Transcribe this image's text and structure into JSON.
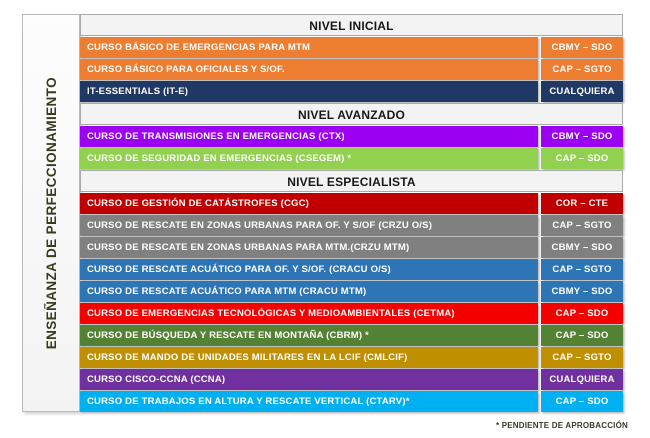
{
  "sidebar": {
    "title": "ENSEÑANZA DE PERFECCIONAMIENTO"
  },
  "footnote": "* PENDIENTE DE APROBACCIÓN",
  "colors": {
    "orange": "#ED7D31",
    "navy": "#1F3864",
    "violet": "#9B00F2",
    "light_green": "#92D050",
    "dark_red": "#C00000",
    "gray": "#808080",
    "steel_blue": "#2E75B6",
    "bright_red": "#F40000",
    "olive_green": "#548235",
    "gold": "#BF8F00",
    "dark_purple": "#7030A0",
    "cyan_blue": "#00B0F0",
    "header_bg": "#F3F3F3"
  },
  "table": {
    "rows": [
      {
        "type": "header",
        "label": "NIVEL INICIAL"
      },
      {
        "type": "course",
        "course": "CURSO BÁSICO DE EMERGENCIAS PARA MTM",
        "rank": "CBMY – SDO",
        "color": "#ED7D31"
      },
      {
        "type": "course",
        "course": "CURSO BÁSICO PARA OFICIALES Y S/OF.",
        "rank": "CAP – SGTO",
        "color": "#ED7D31"
      },
      {
        "type": "course",
        "course": "IT-ESSENTIALS (IT-E)",
        "rank": "CUALQUIERA",
        "color": "#1F3864"
      },
      {
        "type": "header",
        "label": "NIVEL AVANZADO"
      },
      {
        "type": "course",
        "course": "CURSO DE TRANSMISIONES EN EMERGENCIAS (CTX)",
        "rank": "CBMY – SDO",
        "color": "#9B00F2"
      },
      {
        "type": "course",
        "course": "CURSO DE SEGURIDAD EN EMERGENCIAS (CSEGEM) *",
        "rank": "CAP – SDO",
        "color": "#92D050"
      },
      {
        "type": "header",
        "label": "NIVEL ESPECIALISTA"
      },
      {
        "type": "course",
        "course": "CURSO DE GESTIÓN DE CATÁSTROFES (CGC)",
        "rank": "COR – CTE",
        "color": "#C00000"
      },
      {
        "type": "course",
        "course": "CURSO DE RESCATE EN ZONAS URBANAS PARA OF. Y S/OF (CRZU O/S)",
        "rank": "CAP – SGTO",
        "color": "#808080"
      },
      {
        "type": "course",
        "course": "CURSO DE RESCATE EN ZONAS URBANAS PARA MTM.(CRZU MTM)",
        "rank": "CBMY – SDO",
        "color": "#808080"
      },
      {
        "type": "course",
        "course": "CURSO DE RESCATE ACUÁTICO PARA OF. Y S/OF. (CRACU O/S)",
        "rank": "CAP – SGTO",
        "color": "#2E75B6"
      },
      {
        "type": "course",
        "course": "CURSO DE RESCATE ACUÁTICO PARA MTM (CRACU MTM)",
        "rank": "CBMY – SDO",
        "color": "#2E75B6"
      },
      {
        "type": "course",
        "course": "CURSO DE EMERGENCIAS TECNOLÓGICAS Y MEDIOAMBIENTALES (CETMA)",
        "rank": "CAP – SDO",
        "color": "#F40000"
      },
      {
        "type": "course",
        "course": "CURSO DE BÚSQUEDA Y RESCATE EN MONTAÑA (CBRM) *",
        "rank": "CAP – SDO",
        "color": "#548235"
      },
      {
        "type": "course",
        "course": "CURSO DE MANDO DE UNIDADES MILITARES EN LA LCIF (CMLCIF)",
        "rank": "CAP – SGTO",
        "color": "#BF8F00"
      },
      {
        "type": "course",
        "course": "CURSO CISCO-CCNA (CCNA)",
        "rank": "CUALQUIERA",
        "color": "#7030A0"
      },
      {
        "type": "course",
        "course": "CURSO DE TRABAJOS EN ALTURA Y RESCATE VERTICAL  (CTARV)*",
        "rank": "CAP – SDO",
        "color": "#00B0F0"
      }
    ]
  }
}
